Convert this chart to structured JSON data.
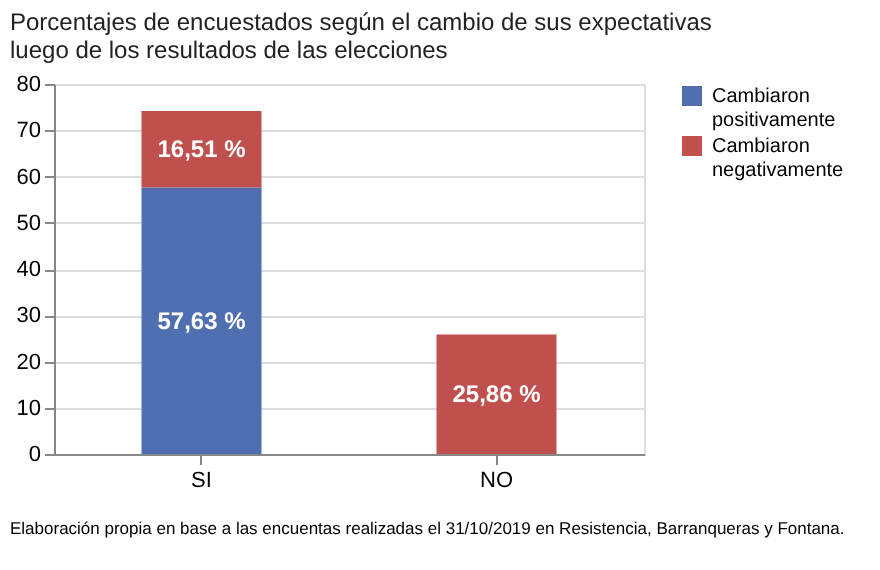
{
  "chart_data": {
    "type": "bar",
    "title": "Porcentajes de encuestados según el cambio de sus expectativas\nluego de los resultados de las elecciones",
    "categories": [
      "SI",
      "NO"
    ],
    "stacked": true,
    "series": [
      {
        "name": "Cambiaron positivamente",
        "color": "#4f6fb0",
        "values": [
          57.63,
          null
        ],
        "value_labels": [
          "57,63 %",
          null
        ]
      },
      {
        "name": "Cambiaron negativamente",
        "color": "#c0504d",
        "values": [
          16.51,
          25.86
        ],
        "value_labels": [
          "16,51 %",
          "25,86 %"
        ]
      }
    ],
    "ylim": [
      0,
      80
    ],
    "yticks": [
      0,
      10,
      20,
      30,
      40,
      50,
      60,
      70,
      80
    ],
    "grid": "y",
    "legend": "right",
    "annotations": [
      "Elaboración propia en base a las encuentas realizadas el 31/10/2019 en Resistencia, Barranqueras y Fontana."
    ]
  }
}
